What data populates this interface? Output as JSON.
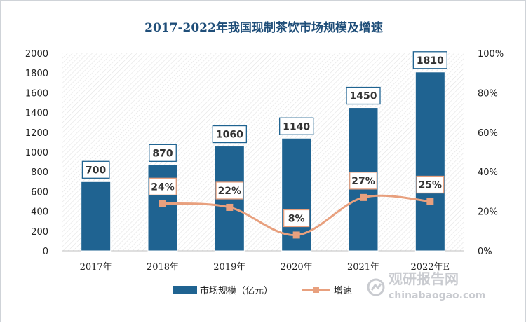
{
  "chart_data": {
    "type": "bar",
    "title": "2017-2022年我国现制茶饮市场规模及增速",
    "categories": [
      "2017年",
      "2018年",
      "2019年",
      "2020年",
      "2021年",
      "2022年E"
    ],
    "series": [
      {
        "name": "市场规模（亿元）",
        "type": "bar",
        "axis": "left",
        "values": [
          700,
          870,
          1060,
          1140,
          1450,
          1810
        ],
        "color": "#1f6391"
      },
      {
        "name": "增速",
        "type": "line",
        "axis": "right",
        "values": [
          null,
          24,
          22,
          8,
          27,
          25
        ],
        "color": "#e8a07e"
      }
    ],
    "value_labels": [
      "700",
      "870",
      "1060",
      "1140",
      "1450",
      "1810"
    ],
    "growth_labels": [
      "",
      "24%",
      "22%",
      "8%",
      "27%",
      "25%"
    ],
    "y_left": {
      "ylim": [
        0,
        2000
      ],
      "ticks": [
        "0",
        "200",
        "400",
        "600",
        "800",
        "1000",
        "1200",
        "1400",
        "1600",
        "1800",
        "2000"
      ]
    },
    "y_right": {
      "ylim": [
        0,
        100
      ],
      "ticks": [
        "0%",
        "20%",
        "40%",
        "60%",
        "80%",
        "100%"
      ]
    },
    "legend_position": "bottom",
    "plot_background": "hatched"
  },
  "watermark": {
    "brand": "观研报告网",
    "url": "chinabaogao.com"
  }
}
